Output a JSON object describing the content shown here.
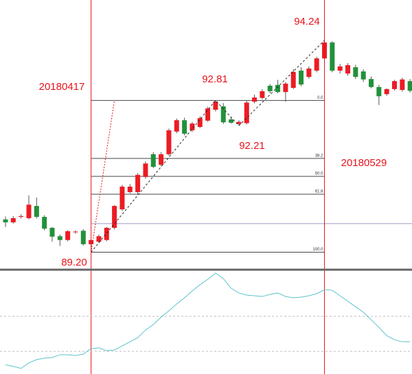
{
  "chart_data": [
    {
      "type": "candlestick",
      "categories": [
        null,
        null,
        null,
        null,
        null,
        null,
        null,
        null,
        null,
        null,
        null,
        "20180417",
        null,
        null,
        null,
        null,
        null,
        null,
        null,
        null,
        null,
        null,
        null,
        null,
        null,
        null,
        null,
        null,
        null,
        null,
        null,
        null,
        null,
        null,
        null,
        null,
        null,
        null,
        null,
        null,
        null,
        "20180529",
        null,
        null,
        null,
        null,
        null,
        null,
        null,
        null,
        null,
        null,
        null
      ],
      "open": [
        89.98,
        89.91,
        90.04,
        90.01,
        90.3,
        90.04,
        89.78,
        89.58,
        89.49,
        89.68,
        89.71,
        89.39,
        89.45,
        89.49,
        89.78,
        90.22,
        90.63,
        90.63,
        90.99,
        91.53,
        91.28,
        91.53,
        92.07,
        92.34,
        92.1,
        92.18,
        92.33,
        92.59,
        92.67,
        92.36,
        92.25,
        92.27,
        92.78,
        92.87,
        93.16,
        93.18,
        93.01,
        93.11,
        93.52,
        93.37,
        93.52,
        93.81,
        94.19,
        93.52,
        93.45,
        93.6,
        93.5,
        93.32,
        93.13,
        92.96,
        93.08,
        93.06,
        93.27
      ],
      "high": [
        90.05,
        90.06,
        90.1,
        90.55,
        90.5,
        90.08,
        89.8,
        89.62,
        89.72,
        89.72,
        89.75,
        89.5,
        89.62,
        89.8,
        90.32,
        90.8,
        90.82,
        91.08,
        91.36,
        91.58,
        91.58,
        92.14,
        92.38,
        92.4,
        92.3,
        92.43,
        92.66,
        92.81,
        92.75,
        92.4,
        92.34,
        92.8,
        92.95,
        93.08,
        93.2,
        93.3,
        93.25,
        93.55,
        93.6,
        93.62,
        93.85,
        94.24,
        94.22,
        93.68,
        93.7,
        93.66,
        93.55,
        93.38,
        93.18,
        93.1,
        93.3,
        93.35,
        93.32
      ],
      "low": [
        89.8,
        89.88,
        90.0,
        89.98,
        90.0,
        89.72,
        89.45,
        89.35,
        89.46,
        89.64,
        89.36,
        89.2,
        89.42,
        89.46,
        89.74,
        90.18,
        90.6,
        90.58,
        90.95,
        91.2,
        91.25,
        91.5,
        92.03,
        91.98,
        92.06,
        92.15,
        92.3,
        92.55,
        92.25,
        92.26,
        92.21,
        92.24,
        92.74,
        92.84,
        92.98,
        92.98,
        92.78,
        93.08,
        93.15,
        93.33,
        93.48,
        93.78,
        93.48,
        93.45,
        93.4,
        93.32,
        93.25,
        93.1,
        92.7,
        92.92,
        93.05,
        93.02,
        93.0
      ],
      "close": [
        89.91,
        90.01,
        90.06,
        90.33,
        90.04,
        89.76,
        89.57,
        89.49,
        89.7,
        89.69,
        89.39,
        89.49,
        89.58,
        89.78,
        90.3,
        90.76,
        90.76,
        91.04,
        91.31,
        91.23,
        91.53,
        92.1,
        92.34,
        92.02,
        92.26,
        92.39,
        92.62,
        92.78,
        92.29,
        92.28,
        92.3,
        92.76,
        92.88,
        93.03,
        93.03,
        93.01,
        93.21,
        93.49,
        93.19,
        93.57,
        93.81,
        94.19,
        93.52,
        93.62,
        93.65,
        93.37,
        93.31,
        93.13,
        92.91,
        93.08,
        93.27,
        93.31,
        93.04
      ],
      "up_color": "#ec1c24",
      "down_color": "#22913a",
      "ylim": [
        88.8,
        95.2
      ],
      "zigzag": [
        {
          "value": 89.2,
          "label": "89.20"
        },
        {
          "value": 92.81,
          "label": "92.81"
        },
        {
          "value": 92.21,
          "label": "92.21"
        },
        {
          "value": 94.24,
          "label": "94.24"
        }
      ],
      "fib_levels": [
        {
          "value": 0,
          "label": "0.0"
        },
        38.2,
        {
          "value": 50,
          "label": "50.0"
        },
        61.8,
        {
          "value": 100,
          "label": "100.0"
        }
      ],
      "price_line": 89.88
    },
    {
      "type": "line",
      "values": [
        9,
        7.3,
        5.5,
        10.7,
        14,
        15.3,
        16,
        18.7,
        18.7,
        18,
        19.3,
        24.7,
        25.3,
        22.7,
        23.3,
        27.3,
        31.3,
        35.3,
        42.7,
        48,
        55.3,
        61.3,
        68,
        74,
        80.7,
        86.7,
        92,
        98,
        92.7,
        83.3,
        78.7,
        76.7,
        76,
        75.3,
        77.3,
        78.7,
        75.3,
        74,
        74.7,
        76,
        78,
        82,
        81.3,
        76,
        70.7,
        65.3,
        60,
        52.7,
        45.3,
        37.3,
        33.3,
        31.3,
        31.3
      ],
      "color": "#5cc3c9",
      "ylim": [
        0,
        100
      ],
      "levels": [
        56,
        22
      ]
    }
  ]
}
